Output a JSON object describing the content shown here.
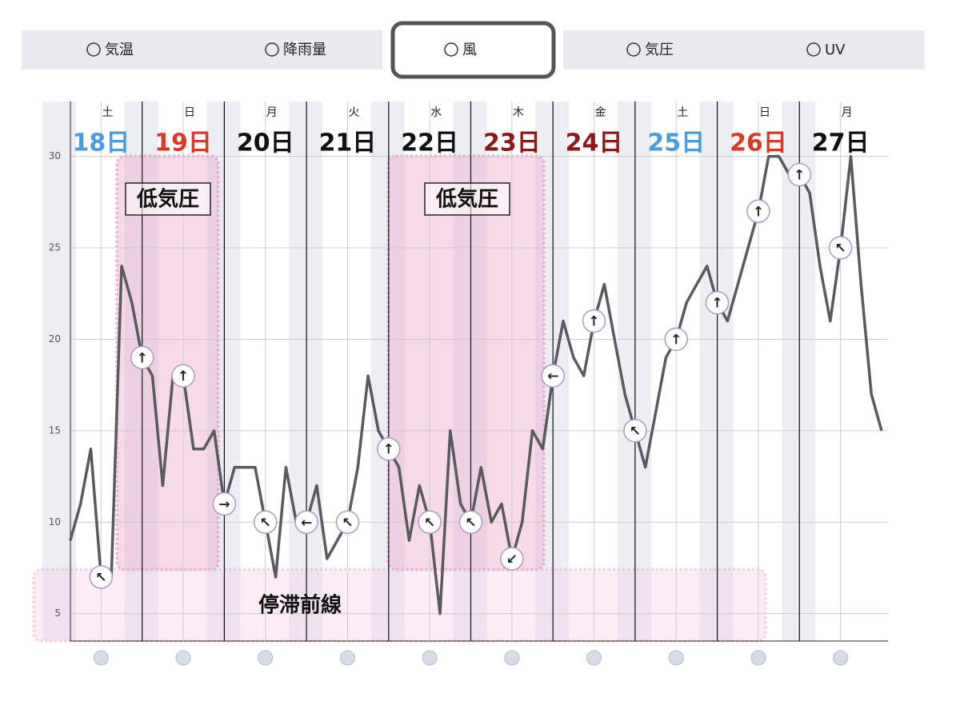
{
  "tabs": [
    {
      "label": "気温"
    },
    {
      "label": "降雨量"
    },
    {
      "label": "風",
      "selected": true
    },
    {
      "label": "気圧"
    },
    {
      "label": "UV"
    }
  ],
  "chart_data": {
    "type": "line",
    "days": [
      {
        "weekday": "土",
        "date": "18日",
        "color": "#4a9be0"
      },
      {
        "weekday": "日",
        "date": "19日",
        "color": "#d83a2a"
      },
      {
        "weekday": "月",
        "date": "20日",
        "color": "#111111"
      },
      {
        "weekday": "火",
        "date": "21日",
        "color": "#111111"
      },
      {
        "weekday": "水",
        "date": "22日",
        "color": "#111111"
      },
      {
        "weekday": "木",
        "date": "23日",
        "color": "#8a1a1a"
      },
      {
        "weekday": "金",
        "date": "24日",
        "color": "#8a1a1a"
      },
      {
        "weekday": "土",
        "date": "25日",
        "color": "#4a9be0"
      },
      {
        "weekday": "日",
        "date": "26日",
        "color": "#d83a2a"
      },
      {
        "weekday": "月",
        "date": "27日",
        "color": "#111111"
      }
    ],
    "series": [
      {
        "color": "#5a5a5e",
        "values": [
          9,
          11,
          14,
          7,
          7,
          24,
          22,
          19,
          18,
          12,
          18,
          18,
          14,
          14,
          15,
          11,
          13,
          13,
          13,
          10,
          7,
          13,
          10,
          10,
          12,
          8,
          9,
          10,
          13,
          18,
          15,
          14,
          13,
          9,
          12,
          10,
          5,
          15,
          11,
          10,
          13,
          10,
          11,
          8,
          10,
          15,
          14,
          18,
          21,
          19,
          18,
          21,
          23,
          20,
          17,
          15,
          13,
          16,
          19,
          20,
          22,
          23,
          24,
          22,
          21,
          23,
          25,
          27,
          30,
          30,
          29,
          29,
          28,
          24,
          21,
          25,
          30,
          23,
          17,
          15
        ]
      }
    ],
    "directions": [
      "↖",
      "↑",
      "↑",
      "→",
      "↖",
      "←",
      "↖",
      "↑",
      "↖",
      "↖",
      "↙",
      "←",
      "↑",
      "↖",
      "↑",
      "↑",
      "↑",
      "↑",
      "↖"
    ],
    "ylim": [
      3.5,
      33
    ],
    "yticks": [
      5,
      10,
      15,
      20,
      25,
      30
    ],
    "grid": true,
    "annotations": [
      {
        "text": "低気圧"
      },
      {
        "text": "低気圧"
      },
      {
        "text": "停滞前線"
      }
    ]
  }
}
